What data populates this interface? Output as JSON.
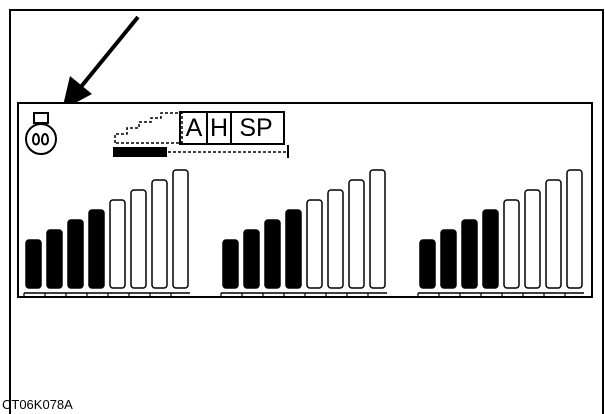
{
  "figure": {
    "code": "CT06K078A"
  },
  "display": {
    "mode_indicators": [
      "A",
      "H",
      "SP"
    ],
    "progress_level": 0.31,
    "bar_groups": [
      {
        "filled": 4,
        "empty": 4
      },
      {
        "filled": 4,
        "empty": 4
      },
      {
        "filled": 4,
        "empty": 4
      }
    ],
    "icons": [
      "lamp-icon",
      "arrow-icon",
      "staircase-icon"
    ],
    "colors": {
      "ink": "#000000",
      "background": "#ffffff"
    }
  }
}
